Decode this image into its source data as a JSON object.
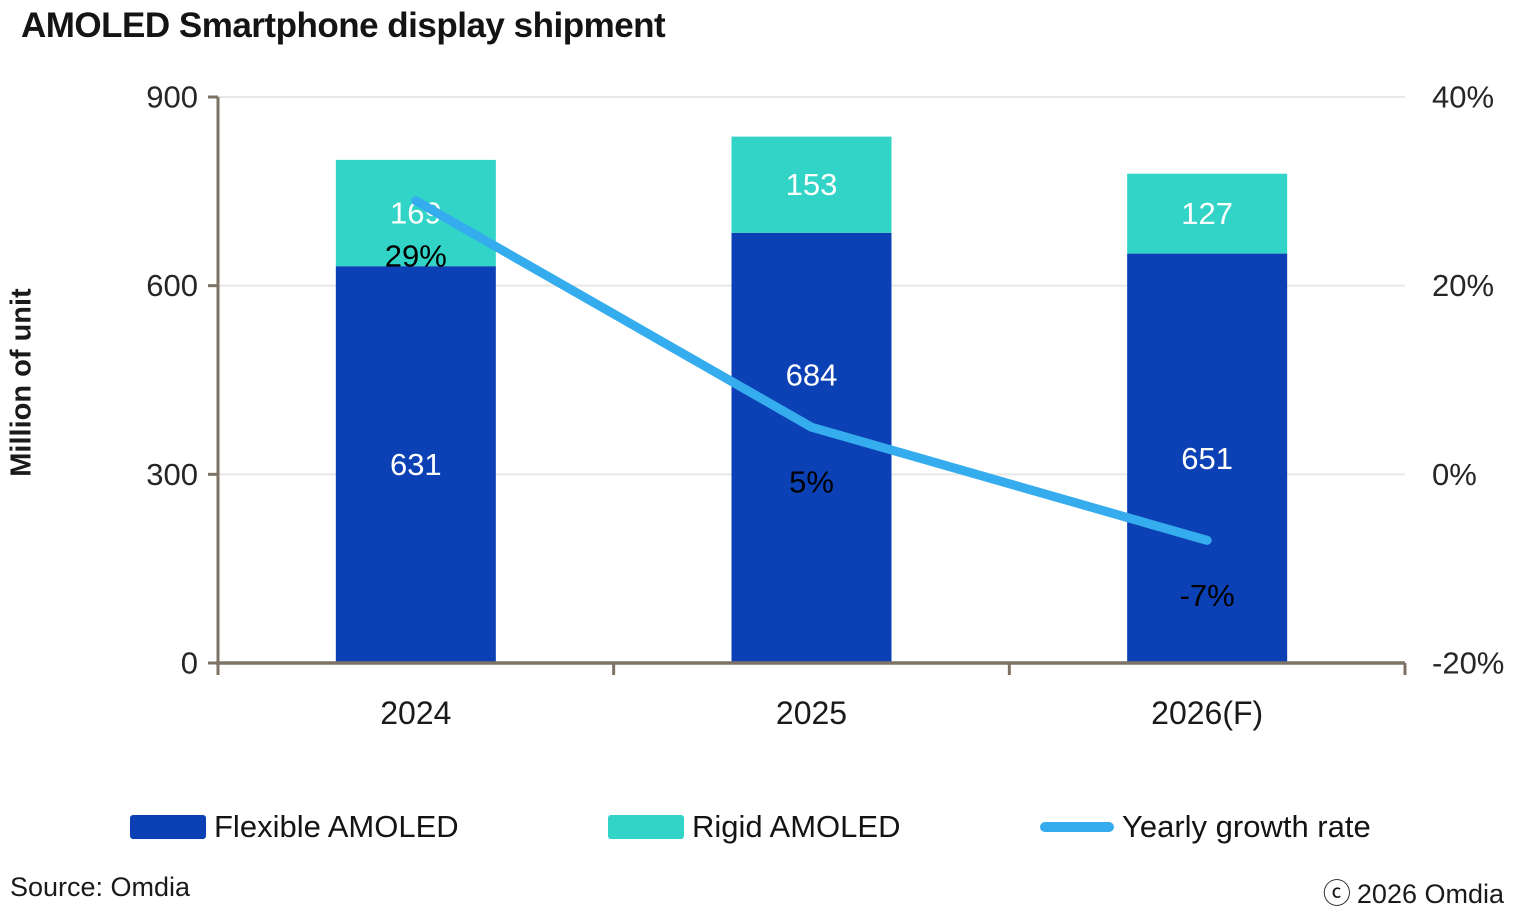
{
  "title": "AMOLED Smartphone display shipment",
  "chart_data": {
    "type": "bar",
    "subtype": "stacked-bar-with-line",
    "categories": [
      "2024",
      "2025",
      "2026(F)"
    ],
    "bar_series": [
      {
        "name": "Flexible AMOLED",
        "values": [
          631,
          684,
          651
        ],
        "color": "#0b41b4",
        "label_color": "#ffffff"
      },
      {
        "name": "Rigid AMOLED",
        "values": [
          169,
          153,
          127
        ],
        "color": "#31d4c6",
        "label_color": "#ffffff"
      }
    ],
    "line_series": {
      "name": "Yearly growth rate",
      "values": [
        29,
        5,
        -7
      ],
      "labels": [
        "29%",
        "5%",
        "-7%"
      ],
      "color": "#35acee",
      "label_color": "#000000",
      "axis": "right"
    },
    "left_axis": {
      "title": "Million of unit",
      "range": [
        0,
        900
      ],
      "ticks": [
        0,
        300,
        600,
        900
      ],
      "tick_labels": [
        "0",
        "300",
        "600",
        "900"
      ]
    },
    "right_axis": {
      "range": [
        -20,
        40
      ],
      "ticks": [
        -20,
        0,
        20,
        40
      ],
      "tick_labels": [
        "-20%",
        "0%",
        "20%",
        "40%"
      ]
    },
    "grid": "horizontal",
    "grid_color": "#e8e8e8",
    "axis_color": "#7d7265",
    "tick_label_color": "#262626",
    "legend_position": "bottom"
  },
  "legend": {
    "items": [
      {
        "label": "Flexible AMOLED",
        "swatch": "bar",
        "color": "#0b41b4"
      },
      {
        "label": "Rigid AMOLED",
        "swatch": "bar",
        "color": "#31d4c6"
      },
      {
        "label": "Yearly growth rate",
        "swatch": "line",
        "color": "#35acee"
      }
    ]
  },
  "footer": {
    "source": "Source: Omdia",
    "copyright_symbol": "ⓒ",
    "copyright_text": "2026 Omdia"
  }
}
